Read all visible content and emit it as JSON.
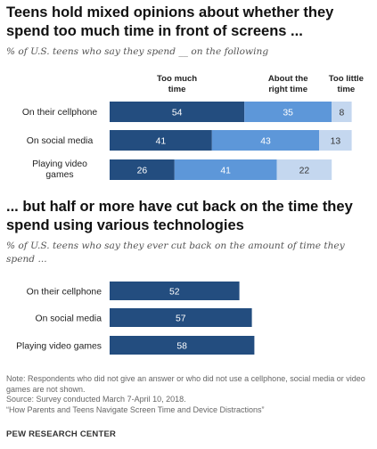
{
  "chart_data": [
    {
      "type": "bar",
      "orientation": "horizontal",
      "stacked": true,
      "title": "Teens hold mixed opinions about whether they spend too much time in front of screens ...",
      "subtitle": "% of U.S. teens who say they spend __ on the following",
      "categories": [
        "On their cellphone",
        "On social media",
        "Playing video games"
      ],
      "series": [
        {
          "name": "Too much time",
          "color": "#234d7f",
          "values": [
            54,
            41,
            26
          ]
        },
        {
          "name": "About the right time",
          "color": "#5d97d9",
          "values": [
            35,
            43,
            41
          ]
        },
        {
          "name": "Too little time",
          "color": "#c4d7ef",
          "values": [
            8,
            13,
            22
          ]
        }
      ],
      "xlim": [
        0,
        100
      ]
    },
    {
      "type": "bar",
      "orientation": "horizontal",
      "title": "... but half or more have cut back on the time they spend using various technologies",
      "subtitle": "% of U.S. teens who say they ever cut back on the amount of time they spend ...",
      "categories": [
        "On their cellphone",
        "On social media",
        "Playing video games"
      ],
      "color": "#234d7f",
      "values": [
        52,
        57,
        58
      ],
      "xlim": [
        0,
        100
      ]
    }
  ],
  "note": {
    "lines": [
      "Note: Respondents who did not give an answer or who did not use a cellphone, social media or video games are not shown.",
      "Source: Survey conducted March 7-April 10, 2018.",
      "“How Parents and Teens Navigate Screen Time and Device Distractions”"
    ]
  },
  "brand": "PEW RESEARCH CENTER"
}
